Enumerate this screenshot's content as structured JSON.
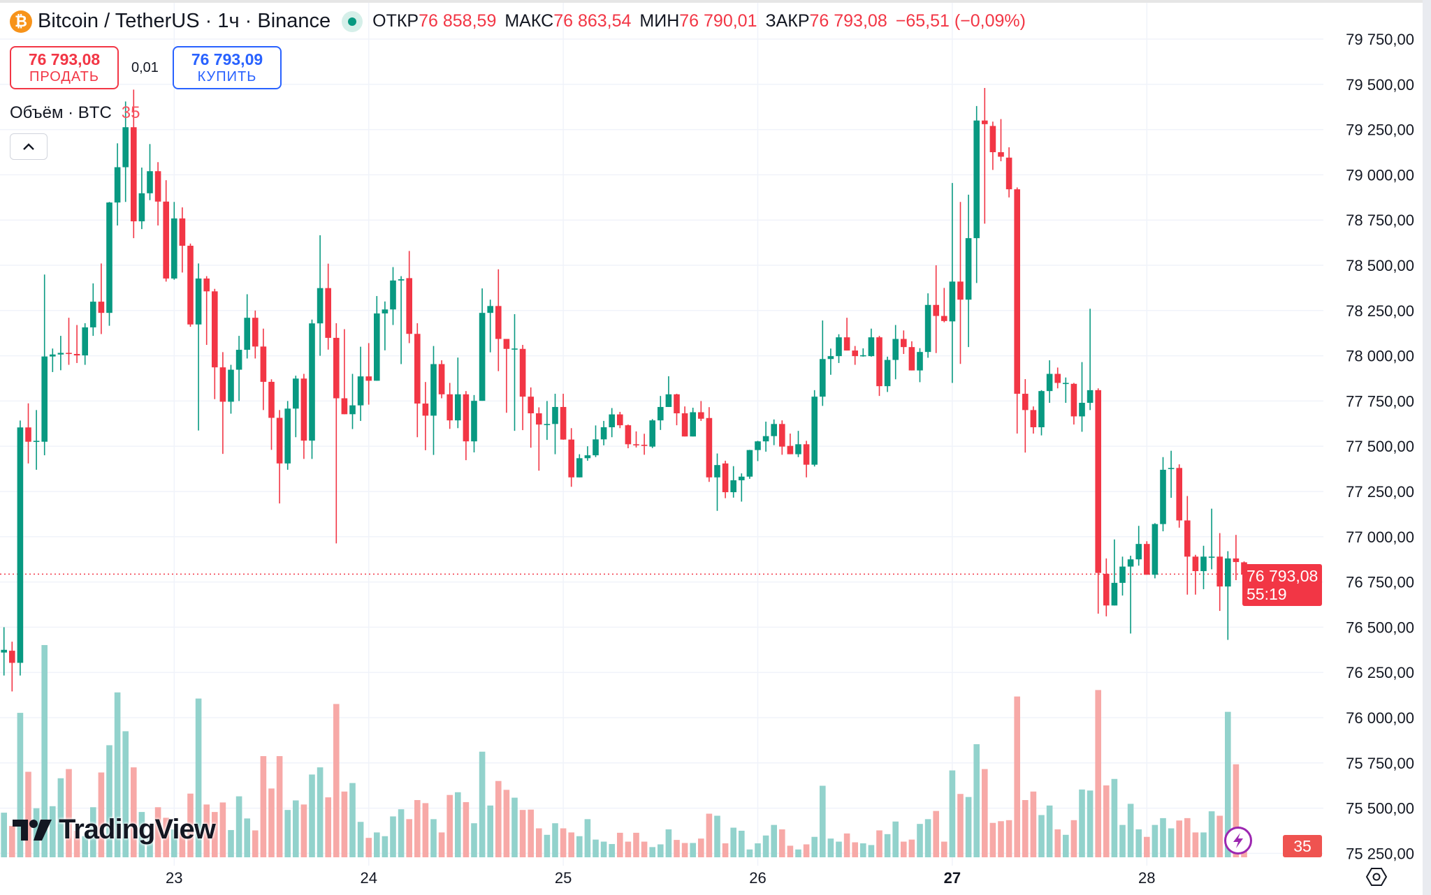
{
  "header": {
    "symbol_icon": "bitcoin-icon",
    "title": "Bitcoin / TetherUS · 1ч · Binance",
    "ohlc": [
      {
        "label": "ОТКР",
        "value": "76 858,59"
      },
      {
        "label": "МАКС",
        "value": "76 863,54"
      },
      {
        "label": "МИН",
        "value": "76 790,01"
      },
      {
        "label": "ЗАКР",
        "value": "76 793,08"
      }
    ],
    "change": "−65,51 (−0,09%)"
  },
  "trade": {
    "sell_price": "76 793,08",
    "sell_label": "ПРОДАТЬ",
    "spread": "0,01",
    "buy_price": "76 793,09",
    "buy_label": "КУПИТЬ"
  },
  "volume_legend": {
    "label": "Объём · BTC",
    "value": "35"
  },
  "price_tag": {
    "price": "76 793,08",
    "countdown": "55:19"
  },
  "volume_tag": "35",
  "logo": "TradingView",
  "colors": {
    "up": "#089981",
    "down": "#F23645",
    "up_volume": "#92D2CC",
    "down_volume": "#F7A9A7",
    "grid": "#F0F3FA"
  },
  "chart_data": {
    "type": "candlestick",
    "interval": "1ч",
    "current_price": 76793.08,
    "ylim": [
      75250,
      79750
    ],
    "grid": true,
    "y_ticks": [
      79750,
      79500,
      79250,
      79000,
      78750,
      78500,
      78250,
      78000,
      77750,
      77500,
      77250,
      77000,
      76750,
      76500,
      76250,
      76000,
      75750,
      75500,
      75250
    ],
    "y_tick_labels": [
      "79 750,00",
      "79 500,00",
      "79 250,00",
      "79 000,00",
      "78 750,00",
      "78 500,00",
      "78 250,00",
      "78 000,00",
      "77 750,00",
      "77 500,00",
      "77 250,00",
      "77 000,00",
      "76 750,00",
      "76 500,00",
      "76 250,00",
      "76 000,00",
      "75 750,00",
      "75 500,00",
      "75 250,00"
    ],
    "x_ticks": [
      {
        "label": "23",
        "candle": 21,
        "bold": false
      },
      {
        "label": "24",
        "candle": 45,
        "bold": false
      },
      {
        "label": "25",
        "candle": 69,
        "bold": false
      },
      {
        "label": "26",
        "candle": 93,
        "bold": false
      },
      {
        "label": "27",
        "candle": 117,
        "bold": true
      },
      {
        "label": "28",
        "candle": 141,
        "bold": false
      }
    ],
    "ohlc_fields": [
      "open",
      "high",
      "low",
      "close"
    ],
    "ohlc": [
      [
        76360,
        76500,
        76233,
        76375
      ],
      [
        76370,
        76420,
        76145,
        76303
      ],
      [
        76303,
        77642,
        76233,
        77604
      ],
      [
        77604,
        77737,
        77405,
        77525
      ],
      [
        77525,
        77700,
        77370,
        77530
      ],
      [
        77525,
        78449,
        77450,
        77996
      ],
      [
        77996,
        78040,
        77910,
        78007
      ],
      [
        78007,
        78110,
        77920,
        78016
      ],
      [
        78016,
        78210,
        77950,
        78010
      ],
      [
        78010,
        78170,
        77960,
        78002
      ],
      [
        78002,
        78180,
        77950,
        78157
      ],
      [
        78157,
        78400,
        78110,
        78299
      ],
      [
        78299,
        78510,
        78120,
        78237
      ],
      [
        78237,
        78850,
        78166,
        78847
      ],
      [
        78847,
        79174,
        78720,
        79042
      ],
      [
        79042,
        79405,
        78850,
        79263
      ],
      [
        79263,
        79471,
        78650,
        78743
      ],
      [
        78743,
        79040,
        78700,
        78898
      ],
      [
        78898,
        79170,
        78860,
        79020
      ],
      [
        79020,
        79070,
        78720,
        78852
      ],
      [
        78852,
        78970,
        78410,
        78427
      ],
      [
        78427,
        78850,
        78420,
        78759
      ],
      [
        78759,
        78820,
        78460,
        78608
      ],
      [
        78608,
        78620,
        78160,
        78173
      ],
      [
        78173,
        78510,
        77587,
        78427
      ],
      [
        78427,
        78440,
        78060,
        78356
      ],
      [
        78356,
        78370,
        77760,
        77936
      ],
      [
        77936,
        78020,
        77458,
        77746
      ],
      [
        77746,
        77950,
        77680,
        77923
      ],
      [
        77923,
        78110,
        77750,
        78033
      ],
      [
        78033,
        78340,
        77985,
        78210
      ],
      [
        78210,
        78250,
        77985,
        78051
      ],
      [
        78051,
        78150,
        77700,
        77856
      ],
      [
        77856,
        77870,
        77480,
        77657
      ],
      [
        77657,
        77700,
        77184,
        77405
      ],
      [
        77405,
        77750,
        77370,
        77708
      ],
      [
        77708,
        77890,
        77550,
        77874
      ],
      [
        77874,
        77900,
        77430,
        77531
      ],
      [
        77531,
        78200,
        77430,
        78179
      ],
      [
        78179,
        78666,
        78000,
        78374
      ],
      [
        78374,
        78509,
        78034,
        78099
      ],
      [
        78099,
        78180,
        76963,
        77765
      ],
      [
        77765,
        78147,
        77677,
        77677
      ],
      [
        77677,
        77900,
        77595,
        77726
      ],
      [
        77726,
        78050,
        77640,
        77886
      ],
      [
        77886,
        78070,
        77730,
        77862
      ],
      [
        77862,
        78330,
        77862,
        78234
      ],
      [
        78234,
        78300,
        78030,
        78256
      ],
      [
        78256,
        78490,
        78170,
        78416
      ],
      [
        78416,
        78440,
        77954,
        78423
      ],
      [
        78429,
        78579,
        78070,
        78121
      ],
      [
        78121,
        78180,
        77550,
        77736
      ],
      [
        77736,
        77855,
        77478,
        77669
      ],
      [
        77669,
        78054,
        77452,
        77954
      ],
      [
        77954,
        77975,
        77765,
        77787
      ],
      [
        77787,
        77850,
        77596,
        77643
      ],
      [
        77643,
        77990,
        77600,
        77787
      ],
      [
        77787,
        77805,
        77423,
        77527
      ],
      [
        77527,
        77783,
        77466,
        77751
      ],
      [
        77751,
        78372,
        77751,
        78237
      ],
      [
        78237,
        78310,
        78019,
        78275
      ],
      [
        78275,
        78478,
        77915,
        78093
      ],
      [
        78093,
        78093,
        77685,
        78038
      ],
      [
        78040,
        78230,
        77585,
        78040
      ],
      [
        78038,
        78060,
        77589,
        77774
      ],
      [
        77774,
        77825,
        77492,
        77682
      ],
      [
        77682,
        77715,
        77365,
        77620
      ],
      [
        77620,
        77750,
        77535,
        77623
      ],
      [
        77623,
        77790,
        77456,
        77717
      ],
      [
        77717,
        77790,
        77536,
        77537
      ],
      [
        77537,
        77600,
        77276,
        77328
      ],
      [
        77328,
        77456,
        77328,
        77434
      ],
      [
        77434,
        77500,
        77420,
        77450
      ],
      [
        77450,
        77615,
        77440,
        77538
      ],
      [
        77538,
        77640,
        77505,
        77605
      ],
      [
        77605,
        77711,
        77550,
        77676
      ],
      [
        77676,
        77690,
        77600,
        77616
      ],
      [
        77616,
        77620,
        77489,
        77511
      ],
      [
        77511,
        77582,
        77493,
        77508
      ],
      [
        77508,
        77569,
        77453,
        77505
      ],
      [
        77498,
        77650,
        77490,
        77643
      ],
      [
        77643,
        77778,
        77590,
        77717
      ],
      [
        77717,
        77887,
        77717,
        77787
      ],
      [
        77787,
        77790,
        77616,
        77682
      ],
      [
        77682,
        77720,
        77554,
        77554
      ],
      [
        77554,
        77713,
        77554,
        77688
      ],
      [
        77688,
        77750,
        77640,
        77652
      ],
      [
        77656,
        77716,
        77303,
        77328
      ],
      [
        77328,
        77460,
        77143,
        77396
      ],
      [
        77405,
        77420,
        77213,
        77246
      ],
      [
        77246,
        77390,
        77216,
        77312
      ],
      [
        77312,
        77350,
        77194,
        77332
      ],
      [
        77332,
        77480,
        77320,
        77479
      ],
      [
        77479,
        77530,
        77418,
        77527
      ],
      [
        77527,
        77636,
        77470,
        77556
      ],
      [
        77556,
        77648,
        77506,
        77623
      ],
      [
        77623,
        77643,
        77453,
        77498
      ],
      [
        77502,
        77570,
        77456,
        77456
      ],
      [
        77456,
        77585,
        77440,
        77511
      ],
      [
        77511,
        77530,
        77328,
        77398
      ],
      [
        77398,
        77810,
        77388,
        77774
      ],
      [
        77774,
        78195,
        77723,
        77982
      ],
      [
        77982,
        78040,
        77895,
        77998
      ],
      [
        77998,
        78119,
        77960,
        78102
      ],
      [
        78102,
        78210,
        78029,
        78029
      ],
      [
        78029,
        78054,
        77950,
        77998
      ],
      [
        77998,
        78041,
        77995,
        78003
      ],
      [
        77998,
        78150,
        77995,
        78102
      ],
      [
        78102,
        78110,
        77778,
        77832
      ],
      [
        77832,
        77995,
        77800,
        77977
      ],
      [
        77977,
        78170,
        77870,
        78093
      ],
      [
        78093,
        78140,
        78010,
        78048
      ],
      [
        78048,
        78080,
        77919,
        77919
      ],
      [
        77919,
        78042,
        77854,
        78021
      ],
      [
        78021,
        78345,
        77989,
        78281
      ],
      [
        78281,
        78500,
        78015,
        78220
      ],
      [
        78220,
        78375,
        78185,
        78192
      ],
      [
        78190,
        78955,
        77850,
        78410
      ],
      [
        78410,
        78850,
        77955,
        78310
      ],
      [
        78310,
        78890,
        78048,
        78650
      ],
      [
        78650,
        79380,
        78402,
        79300
      ],
      [
        79300,
        79480,
        78730,
        79280
      ],
      [
        79270,
        79294,
        79027,
        79125
      ],
      [
        79125,
        79308,
        79075,
        79100
      ],
      [
        79095,
        79152,
        78875,
        78920
      ],
      [
        78920,
        78930,
        77570,
        77790
      ],
      [
        77790,
        77871,
        77465,
        77700
      ],
      [
        77700,
        77720,
        77570,
        77605
      ],
      [
        77605,
        77810,
        77560,
        77805
      ],
      [
        77805,
        77975,
        77740,
        77900
      ],
      [
        77900,
        77935,
        77820,
        77850
      ],
      [
        77850,
        77880,
        77740,
        77850
      ],
      [
        77845,
        77850,
        77620,
        77665
      ],
      [
        77665,
        77965,
        77580,
        77740
      ],
      [
        77740,
        78260,
        77700,
        77810
      ],
      [
        77810,
        77820,
        76575,
        76800
      ],
      [
        76795,
        76880,
        76560,
        76620
      ],
      [
        76620,
        76985,
        76620,
        76745
      ],
      [
        76745,
        76890,
        76675,
        76835
      ],
      [
        76835,
        76895,
        76465,
        76875
      ],
      [
        76875,
        77060,
        76840,
        76960
      ],
      [
        76960,
        76975,
        76790,
        76790
      ],
      [
        76790,
        77075,
        76770,
        77070
      ],
      [
        77070,
        77440,
        77030,
        77370
      ],
      [
        77375,
        77475,
        77215,
        77380
      ],
      [
        77380,
        77400,
        77050,
        77090
      ],
      [
        77090,
        77225,
        76680,
        76890
      ],
      [
        76890,
        76900,
        76680,
        76810
      ],
      [
        76810,
        76950,
        76710,
        76890
      ],
      [
        76890,
        77155,
        76820,
        76890
      ],
      [
        76890,
        77020,
        76590,
        76725
      ],
      [
        76725,
        76920,
        76430,
        76880
      ],
      [
        76880,
        77010,
        76760,
        76860
      ],
      [
        76858.59,
        76863.54,
        76790.01,
        76793.08
      ]
    ],
    "volume": [
      131,
      92,
      424,
      251,
      144,
      623,
      150,
      232,
      259,
      78,
      62,
      147,
      249,
      329,
      484,
      370,
      264,
      133,
      68,
      147,
      116,
      82,
      75,
      187,
      466,
      155,
      133,
      161,
      80,
      179,
      114,
      79,
      297,
      202,
      297,
      139,
      167,
      155,
      243,
      264,
      176,
      450,
      193,
      218,
      104,
      57,
      73,
      62,
      120,
      141,
      112,
      168,
      159,
      112,
      73,
      183,
      191,
      162,
      100,
      310,
      152,
      224,
      198,
      175,
      139,
      140,
      85,
      66,
      100,
      85,
      73,
      62,
      112,
      52,
      46,
      39,
      72,
      46,
      72,
      46,
      30,
      38,
      82,
      51,
      42,
      42,
      55,
      128,
      122,
      41,
      87,
      78,
      23,
      41,
      64,
      95,
      82,
      34,
      23,
      38,
      60,
      210,
      55,
      46,
      70,
      44,
      41,
      36,
      79,
      68,
      105,
      46,
      52,
      98,
      112,
      136,
      46,
      255,
      186,
      177,
      332,
      259,
      101,
      106,
      109,
      472,
      168,
      193,
      124,
      152,
      82,
      66,
      109,
      199,
      196,
      491,
      211,
      230,
      95,
      157,
      82,
      60,
      95,
      115,
      85,
      108,
      115,
      73,
      73,
      135,
      122,
      427,
      273,
      35
    ]
  }
}
